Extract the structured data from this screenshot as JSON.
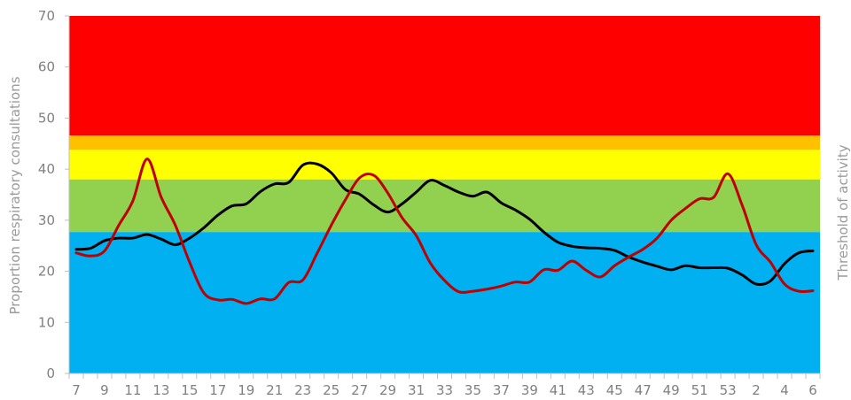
{
  "chart_data": {
    "type": "line",
    "title": "",
    "xlabel": "",
    "ylabel": "Proportion respiratory consultations",
    "y2label": "Threshold of activity",
    "ylim": [
      0,
      70
    ],
    "yticks": [
      0,
      10,
      20,
      30,
      40,
      50,
      60,
      70
    ],
    "grid": false,
    "legend": "none",
    "x": [
      "7",
      "8",
      "9",
      "10",
      "11",
      "12",
      "13",
      "14",
      "15",
      "16",
      "17",
      "18",
      "19",
      "20",
      "21",
      "22",
      "23",
      "24",
      "25",
      "26",
      "27",
      "28",
      "29",
      "30",
      "31",
      "32",
      "33",
      "34",
      "35",
      "36",
      "37",
      "38",
      "39",
      "40",
      "41",
      "42",
      "43",
      "44",
      "45",
      "46",
      "47",
      "48",
      "49",
      "50",
      "51",
      "52",
      "53",
      "1",
      "2",
      "3",
      "4",
      "5",
      "6"
    ],
    "xtick_labels": [
      "7",
      "9",
      "11",
      "13",
      "15",
      "17",
      "19",
      "21",
      "23",
      "25",
      "27",
      "29",
      "31",
      "33",
      "35",
      "37",
      "39",
      "41",
      "43",
      "45",
      "47",
      "49",
      "51",
      "53",
      "2",
      "4",
      "6"
    ],
    "bands": [
      {
        "from": 0,
        "to": 27.7,
        "color": "#00B0F0"
      },
      {
        "from": 27.7,
        "to": 38,
        "color": "#92D050"
      },
      {
        "from": 38,
        "to": 43.8,
        "color": "#FFFF00"
      },
      {
        "from": 43.8,
        "to": 46.6,
        "color": "#FFC000"
      },
      {
        "from": 46.6,
        "to": 70,
        "color": "#FF0000"
      }
    ],
    "series": [
      {
        "color": "#000000",
        "values": [
          24.3,
          24.5,
          26,
          26.5,
          26.5,
          27.2,
          26.3,
          25.2,
          26.5,
          28.5,
          31,
          32.8,
          33.2,
          35.6,
          37.1,
          37.4,
          40.8,
          41,
          39.3,
          36,
          35.1,
          33,
          31.6,
          33.2,
          35.5,
          37.8,
          36.8,
          35.5,
          34.7,
          35.5,
          33.4,
          32,
          30.2,
          27.7,
          25.7,
          24.9,
          24.6,
          24.5,
          24.1,
          22.8,
          21.8,
          21,
          20.3,
          21.1,
          20.7,
          20.7,
          20.6,
          19.3,
          17.5,
          18.1,
          21.5,
          23.6,
          24
        ]
      },
      {
        "color": "#C00000",
        "values": [
          23.6,
          23,
          24,
          29,
          33.8,
          42,
          34.5,
          29,
          21.8,
          15.8,
          14.4,
          14.5,
          13.7,
          14.6,
          14.6,
          17.8,
          18.3,
          23.5,
          29,
          34,
          38.3,
          38.8,
          35.3,
          30.5,
          27,
          21.6,
          18.2,
          16,
          16.1,
          16.5,
          17.1,
          17.9,
          17.9,
          20.3,
          20.2,
          22,
          20.2,
          18.9,
          21.1,
          22.8,
          24.3,
          26.5,
          30,
          32.3,
          34.2,
          34.5,
          39.1,
          33,
          25.2,
          21.8,
          17.5,
          16.1,
          16.2
        ]
      }
    ]
  }
}
